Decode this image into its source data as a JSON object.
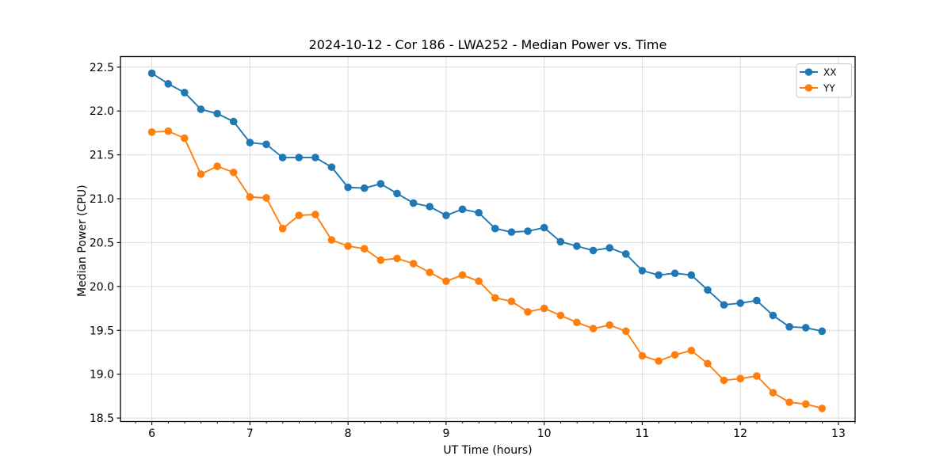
{
  "chart_data": {
    "type": "line",
    "title": "2024-10-12 - Cor 186 - LWA252 - Median Power vs. Time",
    "xlabel": "UT Time (hours)",
    "ylabel": "Median Power (CPU)",
    "xlim": [
      5.68,
      13.17
    ],
    "ylim": [
      18.46,
      22.62
    ],
    "grid": true,
    "legend_position": "upper right",
    "grid_color": "#dcdcdc",
    "x_minor_tick_step": 0.1667,
    "x_ticks": {
      "values": [
        6,
        7,
        8,
        9,
        10,
        11,
        12,
        13
      ],
      "labels": [
        "6",
        "7",
        "8",
        "9",
        "10",
        "11",
        "12",
        "13"
      ]
    },
    "y_ticks": {
      "values": [
        18.5,
        19.0,
        19.5,
        20.0,
        20.5,
        21.0,
        21.5,
        22.0,
        22.5
      ],
      "labels": [
        "18.5",
        "19.0",
        "19.5",
        "20.0",
        "20.5",
        "21.0",
        "21.5",
        "22.0",
        "22.5"
      ]
    },
    "x": [
      6.0,
      6.167,
      6.333,
      6.5,
      6.667,
      6.833,
      7.0,
      7.167,
      7.333,
      7.5,
      7.667,
      7.833,
      8.0,
      8.167,
      8.333,
      8.5,
      8.667,
      8.833,
      9.0,
      9.167,
      9.333,
      9.5,
      9.667,
      9.833,
      10.0,
      10.167,
      10.333,
      10.5,
      10.667,
      10.833,
      11.0,
      11.167,
      11.333,
      11.5,
      11.667,
      11.833,
      12.0,
      12.167,
      12.333,
      12.5,
      12.667,
      12.833
    ],
    "series": [
      {
        "name": "XX",
        "color": "#1f77b4",
        "values": [
          22.43,
          22.31,
          22.21,
          22.02,
          21.97,
          21.88,
          21.64,
          21.62,
          21.47,
          21.47,
          21.47,
          21.36,
          21.13,
          21.12,
          21.17,
          21.06,
          20.95,
          20.91,
          20.81,
          20.88,
          20.84,
          20.66,
          20.62,
          20.63,
          20.67,
          20.51,
          20.46,
          20.41,
          20.44,
          20.37,
          20.18,
          20.13,
          20.15,
          20.13,
          19.96,
          19.79,
          19.81,
          19.84,
          19.67,
          19.54,
          19.53,
          19.49
        ]
      },
      {
        "name": "YY",
        "color": "#ff7f0e",
        "values": [
          21.76,
          21.77,
          21.69,
          21.28,
          21.37,
          21.3,
          21.02,
          21.01,
          20.66,
          20.81,
          20.82,
          20.53,
          20.46,
          20.43,
          20.3,
          20.32,
          20.26,
          20.16,
          20.06,
          20.13,
          20.06,
          19.87,
          19.83,
          19.71,
          19.75,
          19.67,
          19.59,
          19.52,
          19.56,
          19.49,
          19.21,
          19.15,
          19.22,
          19.27,
          19.12,
          18.93,
          18.95,
          18.98,
          18.79,
          18.68,
          18.66,
          18.61
        ]
      }
    ]
  }
}
